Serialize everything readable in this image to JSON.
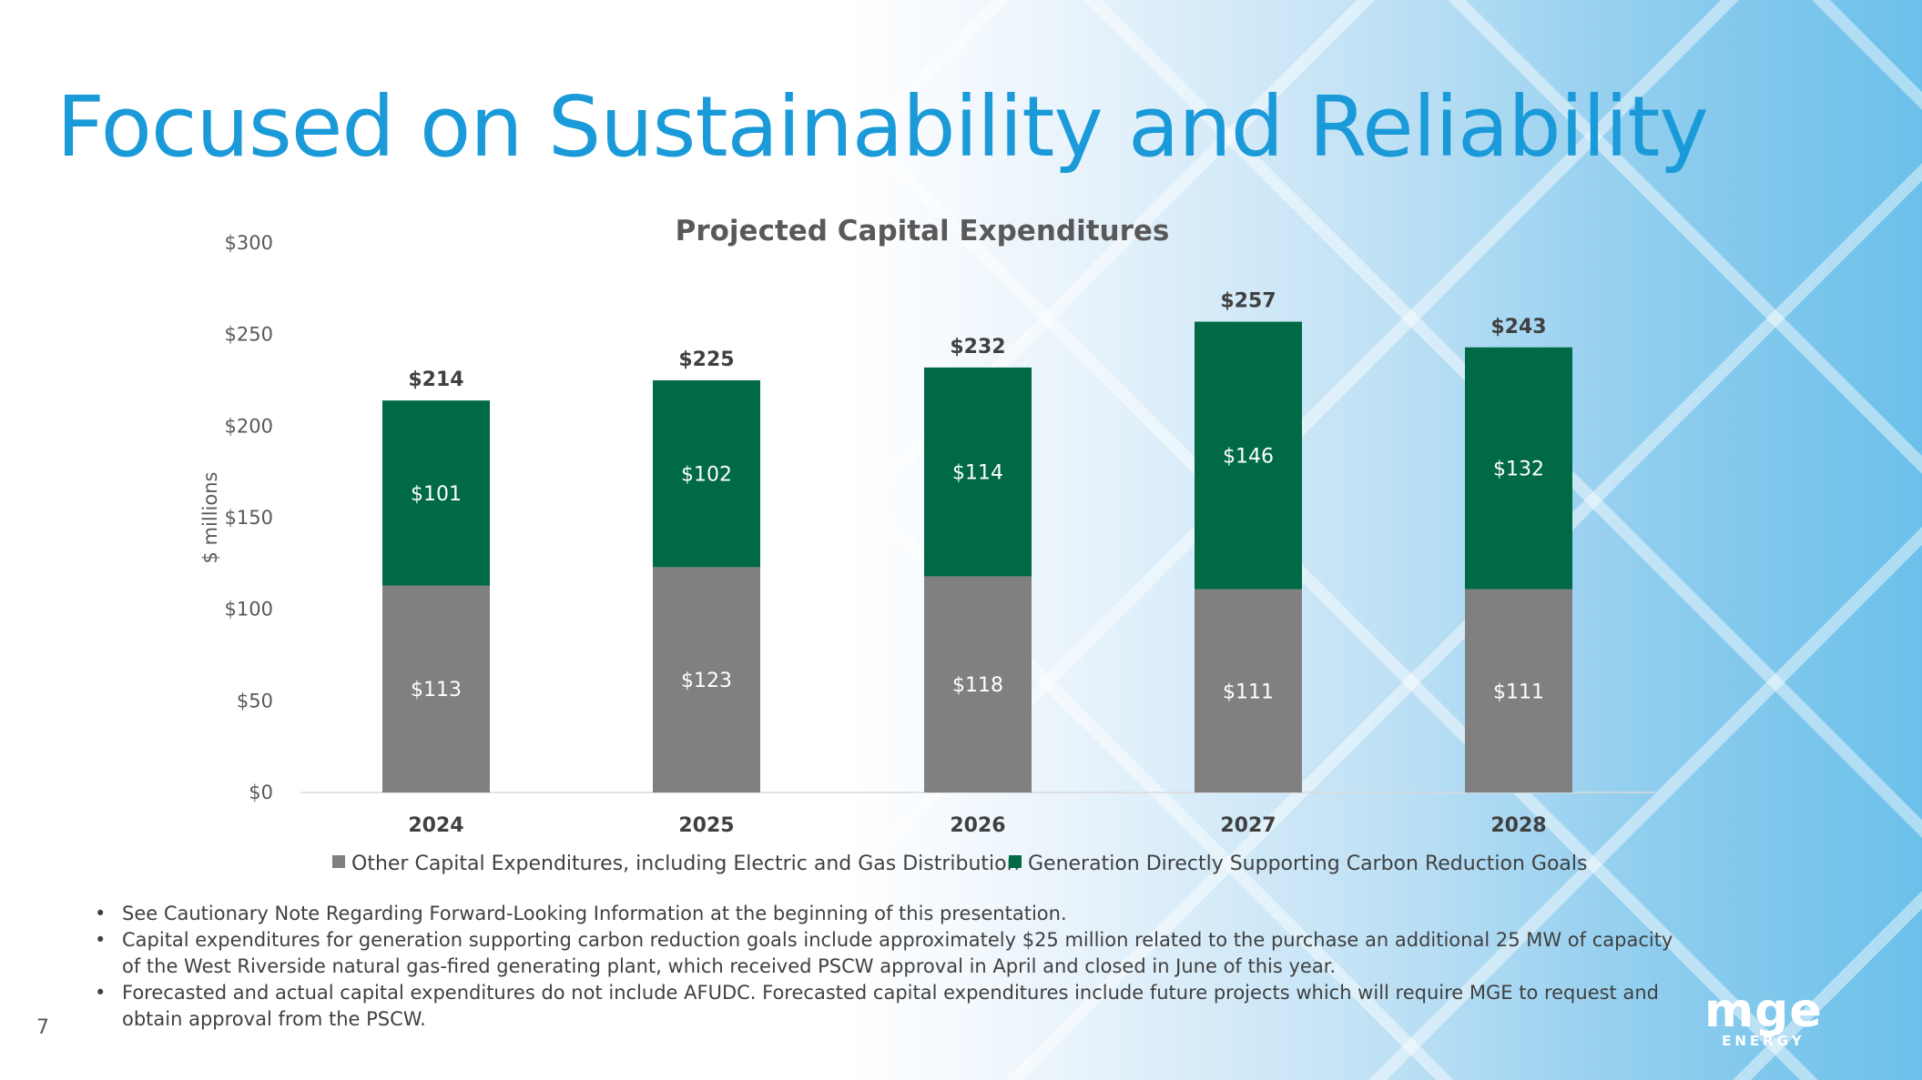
{
  "slide": {
    "title": "Focused on Sustainability and Reliability",
    "page_number": "7",
    "logo": {
      "main": "mge",
      "sub": "ENERGY"
    },
    "colors": {
      "title": "#1a9ad8",
      "gray_series": "#808080",
      "green_series": "#006a46"
    }
  },
  "chart_data": {
    "type": "bar",
    "stacked": true,
    "title": "Projected Capital Expenditures",
    "ylabel": "$ millions",
    "xlabel": "",
    "categories": [
      "2024",
      "2025",
      "2026",
      "2027",
      "2028"
    ],
    "ylim": [
      0,
      300
    ],
    "y_ticks": [
      0,
      50,
      100,
      150,
      200,
      250,
      300
    ],
    "y_tick_labels": [
      "$0",
      "$50",
      "$100",
      "$150",
      "$200",
      "$250",
      "$300"
    ],
    "series": [
      {
        "name": "Other Capital Expenditures, including Electric and Gas Distribution",
        "color": "#808080",
        "values": [
          113,
          123,
          118,
          111,
          111
        ],
        "labels": [
          "$113",
          "$123",
          "$118",
          "$111",
          "$111"
        ]
      },
      {
        "name": "Generation Directly Supporting Carbon Reduction Goals",
        "color": "#006a46",
        "values": [
          101,
          102,
          114,
          146,
          132
        ],
        "labels": [
          "$101",
          "$102",
          "$114",
          "$146",
          "$132"
        ]
      }
    ],
    "totals": [
      214,
      225,
      232,
      257,
      243
    ],
    "total_labels": [
      "$214",
      "$225",
      "$232",
      "$257",
      "$243"
    ],
    "legend_position": "bottom",
    "grid": false
  },
  "notes": [
    "See Cautionary Note Regarding Forward-Looking Information at the beginning of this presentation.",
    "Capital expenditures for generation supporting carbon reduction goals include approximately $25 million related to the purchase an additional 25 MW of capacity of the West Riverside natural gas-fired generating plant, which received PSCW approval in April and closed in June of this year.",
    "Forecasted and actual capital expenditures do not include AFUDC. Forecasted capital expenditures include future projects which will require MGE to request and obtain approval from the PSCW."
  ]
}
